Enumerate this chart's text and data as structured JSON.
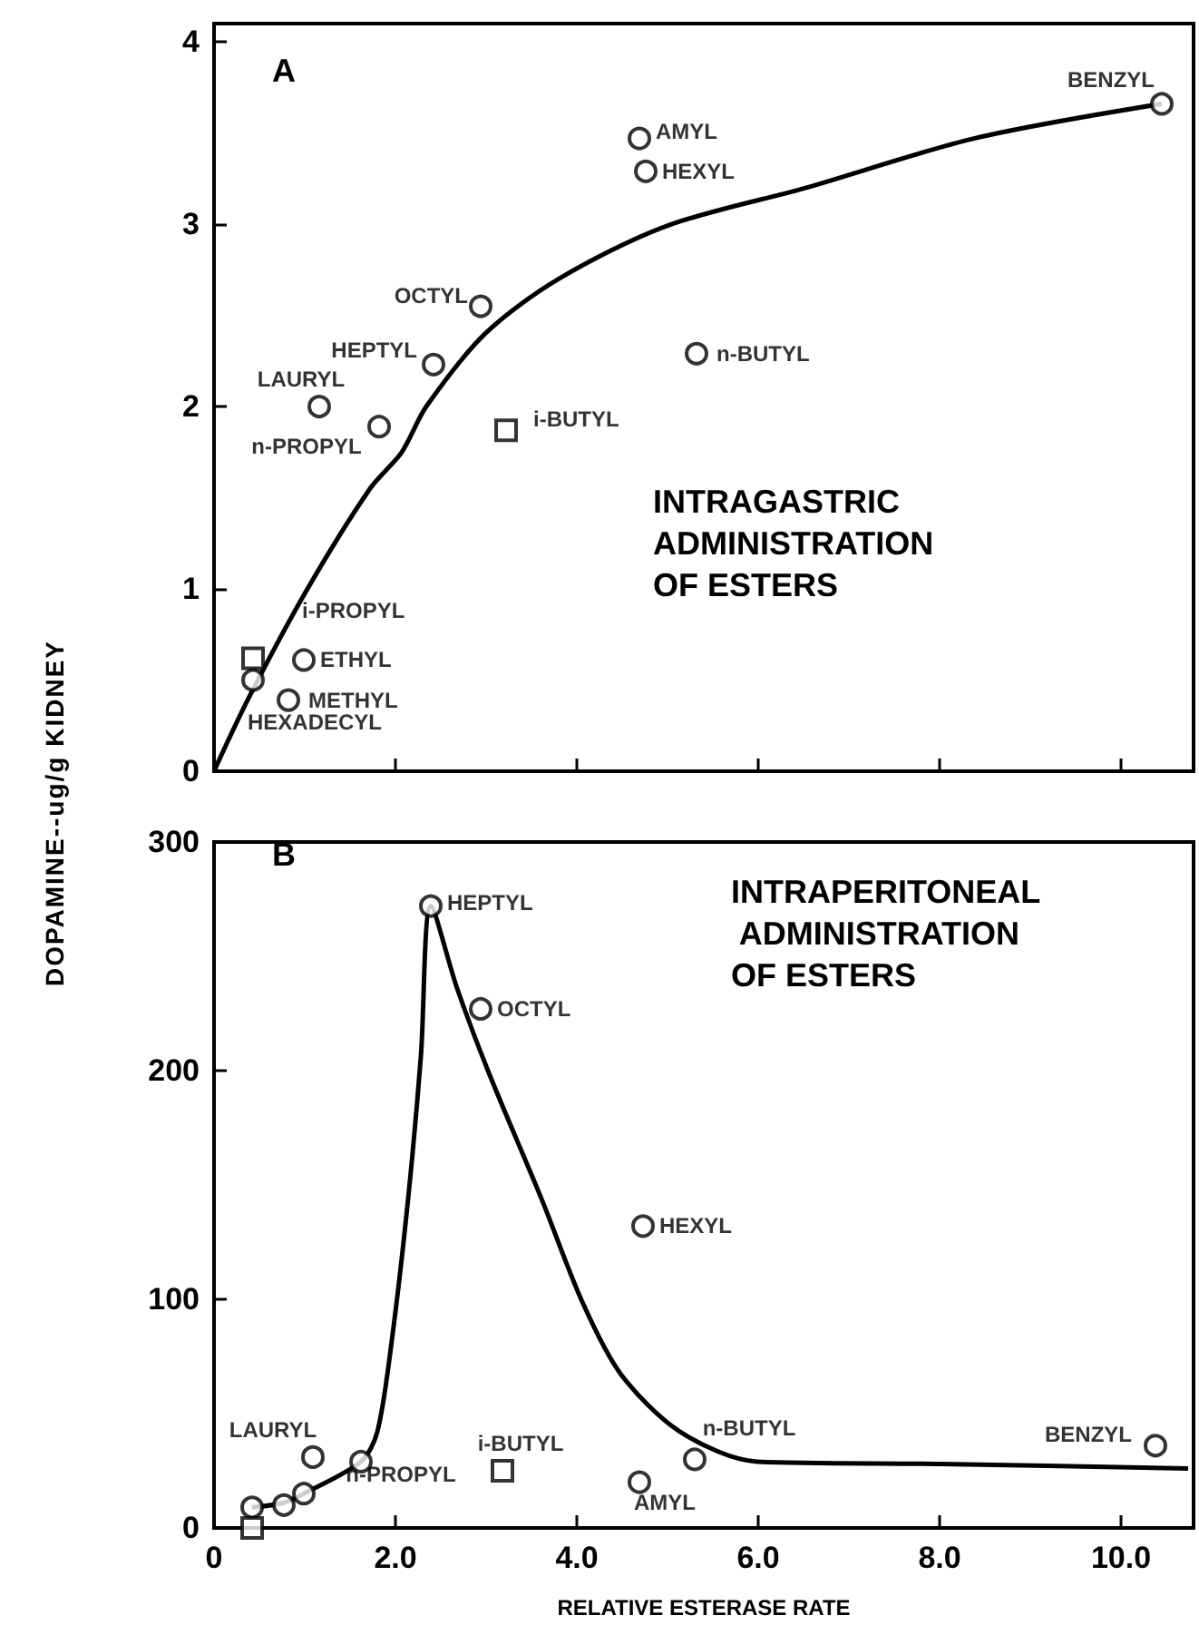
{
  "chart_data": [
    {
      "type": "scatter",
      "xlim": [
        0,
        10.8
      ],
      "xticks": [
        {
          "value": 0,
          "label": null
        },
        {
          "value": 2,
          "label": null
        },
        {
          "value": 4,
          "label": null
        },
        {
          "value": 6,
          "label": null
        },
        {
          "value": 8,
          "label": null
        },
        {
          "value": 10,
          "label": null
        }
      ],
      "ylim": [
        0,
        4.1
      ],
      "yticks": [
        0,
        1,
        2,
        3,
        4
      ],
      "tick_labels": "y",
      "ylabel": "DOPAMINE--ug/g KIDNEY",
      "grid": false,
      "series": [
        {
          "marker": "circle",
          "color": "#000000",
          "x": [
            10.45,
            4.69,
            4.76,
            2.94,
            2.42,
            1.16,
            1.82,
            5.32,
            0.99,
            0.82,
            0.43
          ],
          "values": [
            3.66,
            3.47,
            3.29,
            2.55,
            2.23,
            2.0,
            1.89,
            2.29,
            0.61,
            0.39,
            0.5
          ]
        },
        {
          "marker": "square",
          "color": "#000000",
          "x": [
            3.22,
            0.43
          ],
          "values": [
            1.87,
            0.62
          ]
        },
        {
          "type": "line",
          "marker": "none",
          "color": "#000000",
          "x": [
            0,
            0.38,
            1.03,
            1.72,
            2.07,
            2.34,
            2.99,
            3.8,
            4.99,
            6.53,
            8.38,
            10.45
          ],
          "values": [
            0,
            0.4,
            1.0,
            1.55,
            1.75,
            2.0,
            2.4,
            2.7,
            2.99,
            3.2,
            3.47,
            3.66
          ]
        }
      ],
      "annotations": [
        "A",
        "INTRAGASTRIC ADMINISTRATION OF ESTERS",
        {
          "text": "BENZYL",
          "x": 10.45,
          "y": 3.66
        },
        {
          "text": "AMYL",
          "x": 4.69,
          "y": 3.47
        },
        {
          "text": "HEXYL",
          "x": 4.76,
          "y": 3.29
        },
        {
          "text": "OCTYL",
          "x": 2.94,
          "y": 2.55
        },
        {
          "text": "HEPTYL",
          "x": 2.42,
          "y": 2.23
        },
        {
          "text": "LAURYL",
          "x": 1.16,
          "y": 2.0
        },
        {
          "text": "n-PROPYL",
          "x": 1.82,
          "y": 1.89
        },
        {
          "text": "n-BUTYL",
          "x": 5.32,
          "y": 2.29
        },
        {
          "text": "i-BUTYL",
          "x": 3.22,
          "y": 1.87
        },
        {
          "text": "i-PROPYL",
          "x": 0.43,
          "y": 0.62
        },
        {
          "text": "ETHYL",
          "x": 0.99,
          "y": 0.61
        },
        {
          "text": "METHYL",
          "x": 0.82,
          "y": 0.39
        },
        {
          "text": "HEXADECYL",
          "x": 0.43,
          "y": 0.5
        }
      ]
    },
    {
      "type": "scatter",
      "xlim": [
        0,
        10.8
      ],
      "xticks": [
        0,
        {
          "value": 2,
          "label": "2.0"
        },
        {
          "value": 4,
          "label": "4.0"
        },
        {
          "value": 6,
          "label": "6.0"
        },
        {
          "value": 8,
          "label": "8.0"
        },
        {
          "value": 10,
          "label": "10.0"
        }
      ],
      "ylim": [
        0,
        300
      ],
      "yticks": [
        0,
        100,
        200,
        300
      ],
      "xlabel": "RELATIVE ESTERASE RATE",
      "grid": false,
      "series": [
        {
          "marker": "circle",
          "color": "#000000",
          "x": [
            2.39,
            2.94,
            4.73,
            10.38,
            5.3,
            4.69,
            1.09,
            1.62,
            0.42,
            0.77,
            0.99
          ],
          "values": [
            272,
            227,
            132,
            36,
            30,
            20,
            31,
            29,
            9,
            10,
            15
          ]
        },
        {
          "marker": "square",
          "color": "#000000",
          "x": [
            3.18,
            0.42
          ],
          "values": [
            25,
            0
          ]
        },
        {
          "type": "line",
          "marker": "none",
          "color": "#000000",
          "x": [
            0.42,
            0.77,
            0.99,
            1.62,
            1.8,
            1.96,
            2.14,
            2.28,
            2.39,
            2.68,
            3.03,
            3.61,
            4.07,
            4.49,
            5.14,
            5.99,
            8.0,
            10.74
          ],
          "values": [
            9,
            11,
            15,
            29,
            42,
            82,
            144,
            206,
            272,
            236,
            199,
            144,
            98,
            67,
            42,
            29,
            28,
            26
          ]
        }
      ],
      "annotations": [
        "B",
        "INTRAPERITONEAL ADMINISTRATION OF ESTERS",
        {
          "text": "HEPTYL",
          "x": 2.39,
          "y": 272
        },
        {
          "text": "OCTYL",
          "x": 2.94,
          "y": 227
        },
        {
          "text": "HEXYL",
          "x": 4.73,
          "y": 132
        },
        {
          "text": "BENZYL",
          "x": 10.38,
          "y": 36
        },
        {
          "text": "n-BUTYL",
          "x": 5.3,
          "y": 30
        },
        {
          "text": "AMYL",
          "x": 4.69,
          "y": 20
        },
        {
          "text": "i-BUTYL",
          "x": 3.18,
          "y": 25
        },
        {
          "text": "LAURYL",
          "x": 1.09,
          "y": 31
        },
        {
          "text": "n-PROPYL",
          "x": 1.62,
          "y": 29
        }
      ]
    }
  ]
}
